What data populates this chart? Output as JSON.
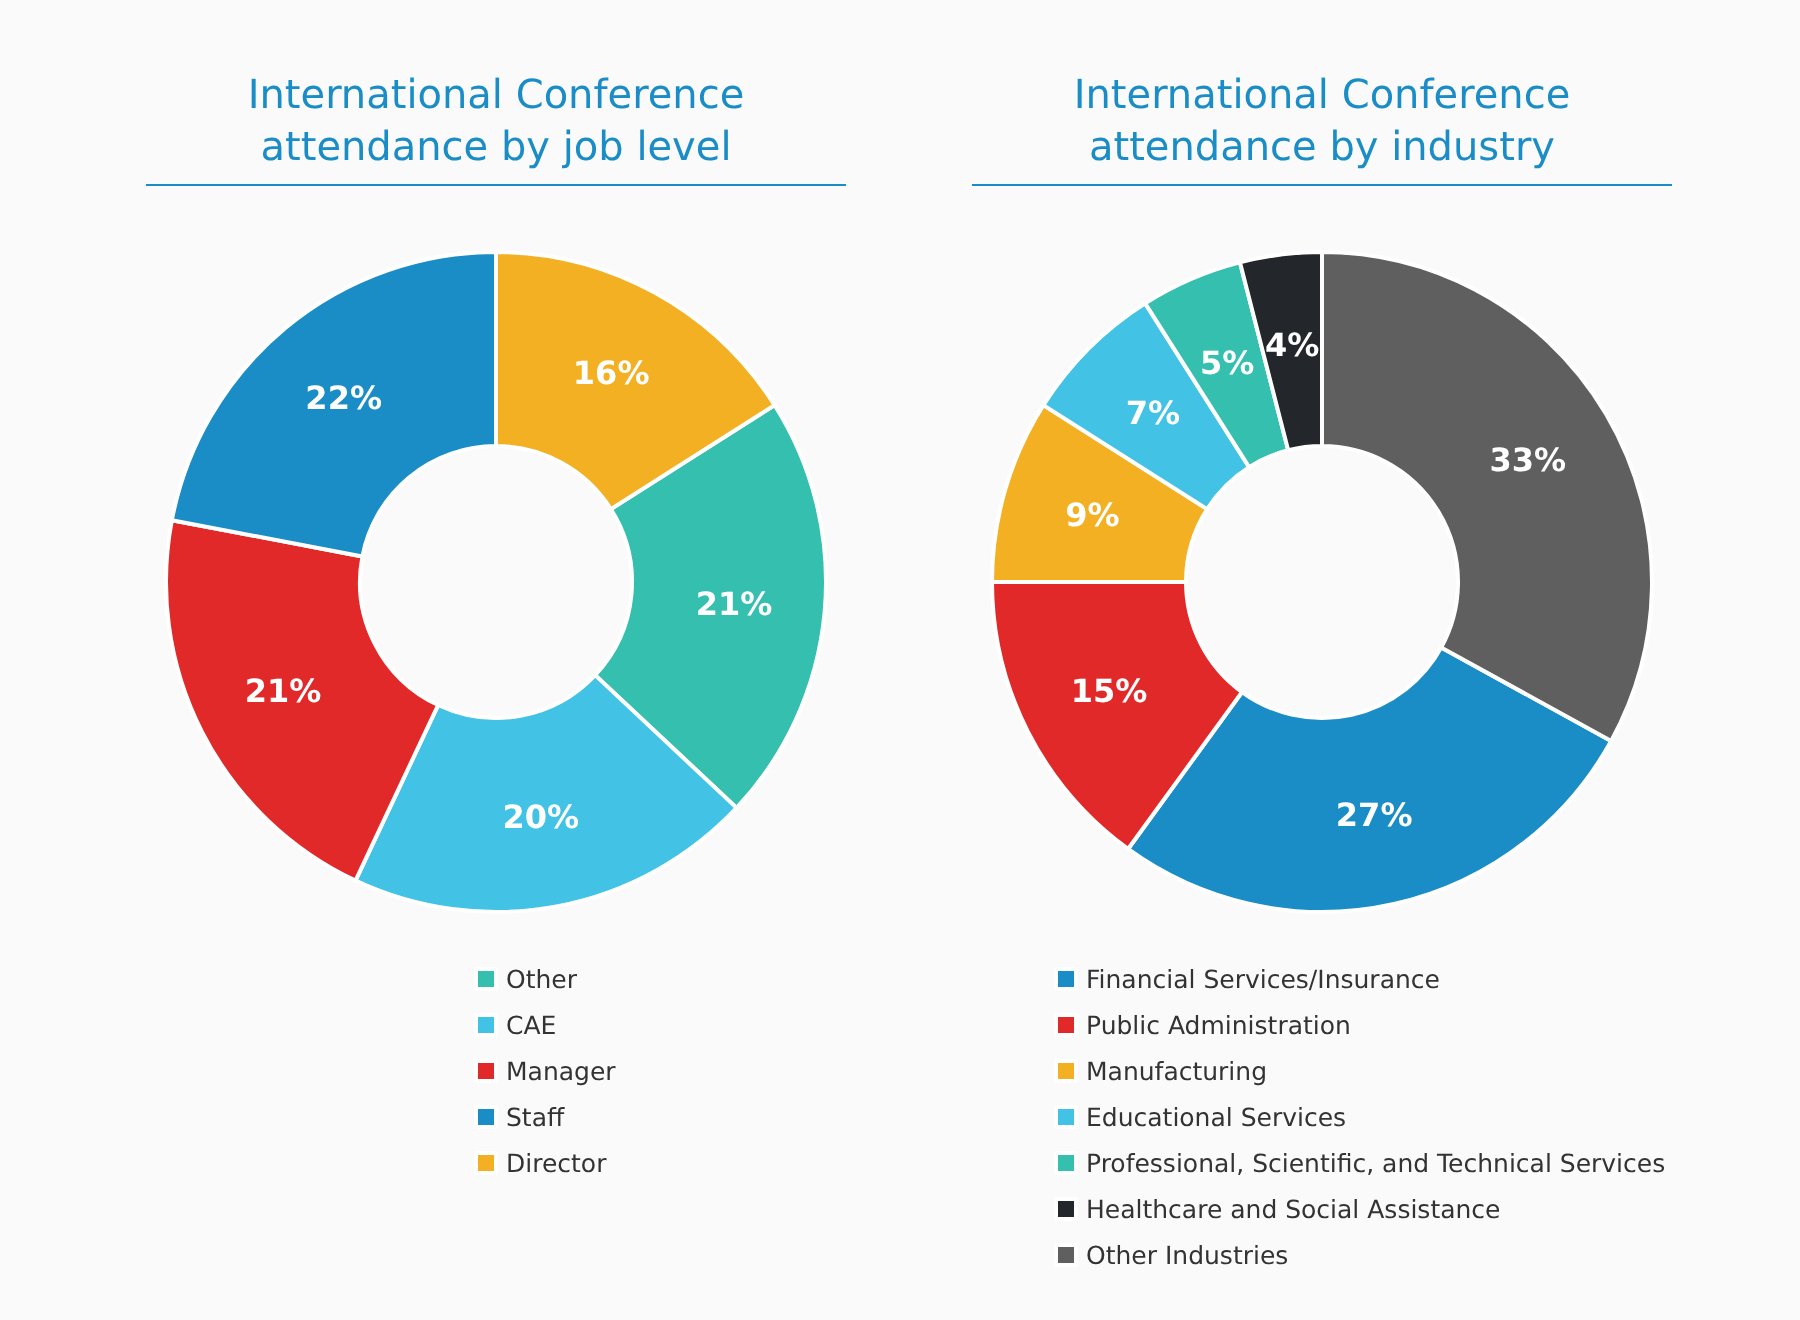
{
  "chart_data": [
    {
      "type": "donut",
      "title": "International Conference attendance by job level",
      "categories": [
        "Other",
        "CAE",
        "Manager",
        "Staff",
        "Director"
      ],
      "values": [
        21,
        20,
        21,
        22,
        16
      ],
      "value_labels": [
        "21%",
        "20%",
        "21%",
        "22%",
        "16%"
      ],
      "colors": [
        "#34bfae",
        "#42c2e4",
        "#e2292a",
        "#1b8dc6",
        "#f4b023"
      ],
      "legend": "bottom"
    },
    {
      "type": "donut",
      "title": "International Conference attendance by industry",
      "categories": [
        "Financial Services/Insurance",
        "Public Administration",
        "Manufacturing",
        "Educational Services",
        "Professional, Scientific, and Technical Services",
        "Healthcare and Social Assistance",
        "Other Industries"
      ],
      "values": [
        27,
        15,
        9,
        7,
        5,
        4,
        33
      ],
      "value_labels": [
        "27%",
        "15%",
        "9%",
        "7%",
        "5%",
        "4%",
        "33%"
      ],
      "colors": [
        "#1b8dc6",
        "#e2292a",
        "#f4b023",
        "#42c2e4",
        "#34bfae",
        "#23272b",
        "#5e5f5e"
      ],
      "legend": "bottom"
    }
  ]
}
